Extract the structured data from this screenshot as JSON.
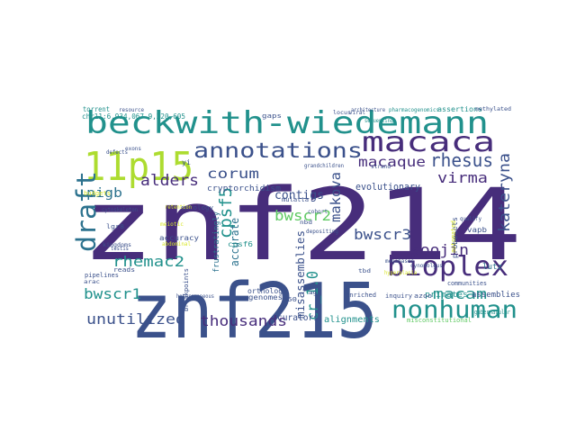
{
  "palette": {
    "purple": "#472d7b",
    "indigo": "#3b518b",
    "blue": "#2c728e",
    "teal": "#21918c",
    "green": "#28ae80",
    "lime": "#5ec962",
    "yellowgreen": "#addc30",
    "yellow": "#d9e72a",
    "dark": "#440154"
  },
  "words": [
    {
      "text": "znf214",
      "color": "purple"
    },
    {
      "text": "znf215",
      "color": "indigo"
    },
    {
      "text": "beckwith-wiedemann",
      "color": "teal"
    },
    {
      "text": "11p15",
      "color": "yellowgreen"
    },
    {
      "text": "macaca",
      "color": "purple"
    },
    {
      "text": "annotations",
      "color": "indigo"
    },
    {
      "text": "bioplex",
      "color": "purple"
    },
    {
      "text": "nonhuman",
      "color": "teal"
    },
    {
      "text": "draft",
      "color": "blue"
    },
    {
      "text": "kateryna",
      "color": "indigo"
    },
    {
      "text": "macaque",
      "color": "purple"
    },
    {
      "text": "rhesus",
      "color": "indigo"
    },
    {
      "text": "alders",
      "color": "purple"
    },
    {
      "text": "corum",
      "color": "indigo"
    },
    {
      "text": "pigb",
      "color": "blue"
    },
    {
      "text": "virma",
      "color": "purple"
    },
    {
      "text": "cpsf5",
      "color": "teal"
    },
    {
      "text": "rhemac2",
      "color": "teal"
    },
    {
      "text": "bwscr2",
      "color": "lime"
    },
    {
      "text": "bwscr3",
      "color": "indigo"
    },
    {
      "text": "bwscr1",
      "color": "teal"
    },
    {
      "text": "makova",
      "color": "indigo"
    },
    {
      "text": "soojin",
      "color": "purple"
    },
    {
      "text": "macam",
      "color": "teal"
    },
    {
      "text": "unutilized",
      "color": "indigo"
    },
    {
      "text": "thousands",
      "color": "purple"
    },
    {
      "text": "cr_1.0",
      "color": "teal"
    },
    {
      "text": "contigs",
      "color": "indigo"
    },
    {
      "text": "accurate",
      "color": "blue"
    },
    {
      "text": "misassemblies",
      "color": "indigo"
    },
    {
      "text": "evolutionary",
      "color": "indigo"
    },
    {
      "text": "cryptorchidism",
      "color": "indigo"
    },
    {
      "text": "assemblies",
      "color": "indigo"
    },
    {
      "text": "primates",
      "color": "teal"
    },
    {
      "text": "alignments",
      "color": "teal"
    },
    {
      "text": "curators",
      "color": "indigo"
    },
    {
      "text": "communities",
      "color": "indigo"
    },
    {
      "text": "enriched",
      "color": "indigo"
    },
    {
      "text": "inquiry",
      "color": "indigo"
    },
    {
      "text": "azoo",
      "color": "indigo"
    },
    {
      "text": "lutz",
      "color": "blue"
    },
    {
      "text": "vapb",
      "color": "indigo"
    },
    {
      "text": "probesets",
      "color": "indigo"
    },
    {
      "text": "frustratingly",
      "color": "blue"
    },
    {
      "text": "genomes",
      "color": "indigo"
    },
    {
      "text": "orthologs",
      "color": "indigo"
    },
    {
      "text": "cpsf6",
      "color": "teal"
    },
    {
      "text": "lgr8",
      "color": "indigo"
    },
    {
      "text": "accuracy",
      "color": "indigo"
    },
    {
      "text": "pipelines",
      "color": "indigo"
    },
    {
      "text": "reads",
      "color": "indigo"
    },
    {
      "text": "chr11:6,934,067-9,220,605",
      "color": "teal"
    },
    {
      "text": "assertions",
      "color": "teal"
    },
    {
      "text": "gaps",
      "color": "indigo"
    },
    {
      "text": "mulatta",
      "color": "indigo"
    },
    {
      "text": "ontology",
      "color": "indigo"
    },
    {
      "text": "breakpoints",
      "color": "indigo"
    },
    {
      "text": "automated",
      "color": "yellow"
    },
    {
      "text": "gubernacular",
      "color": "teal"
    },
    {
      "text": "misconstitutional",
      "color": "lime"
    },
    {
      "text": "budgets",
      "color": "yellow"
    },
    {
      "text": "pharmacogenomics",
      "color": "teal"
    },
    {
      "text": "arac",
      "color": "indigo"
    },
    {
      "text": "yi",
      "color": "indigo"
    },
    {
      "text": "n50",
      "color": "indigo"
    },
    {
      "text": "kingdoms",
      "color": "indigo"
    },
    {
      "text": "methylated",
      "color": "indigo"
    },
    {
      "text": "torrent",
      "color": "teal"
    },
    {
      "text": "resource",
      "color": "indigo"
    },
    {
      "text": "cytoskeleton",
      "color": "indigo"
    },
    {
      "text": "depositing",
      "color": "indigo"
    },
    {
      "text": "strand",
      "color": "indigo"
    },
    {
      "text": "megabases",
      "color": "indigo"
    },
    {
      "text": "grandchildren",
      "color": "indigo"
    },
    {
      "text": "cynomolgus",
      "color": "indigo"
    },
    {
      "text": "retention",
      "color": "yellow"
    },
    {
      "text": "meiotic",
      "color": "yellow"
    },
    {
      "text": "locus",
      "color": "indigo"
    },
    {
      "text": "viral",
      "color": "indigo"
    },
    {
      "text": "qualify",
      "color": "indigo"
    },
    {
      "text": "nbd",
      "color": "indigo"
    },
    {
      "text": "tbd",
      "color": "indigo"
    },
    {
      "text": "ago",
      "color": "indigo"
    },
    {
      "text": "architecture",
      "color": "indigo"
    },
    {
      "text": "abdominal",
      "color": "yellow"
    },
    {
      "text": "testis",
      "color": "indigo"
    },
    {
      "text": "defects",
      "color": "indigo"
    },
    {
      "text": "exons",
      "color": "indigo"
    },
    {
      "text": "hyperplasia",
      "color": "yellow"
    },
    {
      "text": "cohort",
      "color": "indigo"
    },
    {
      "text": "sequencing",
      "color": "teal"
    },
    {
      "text": "heterogeneous",
      "color": "indigo"
    }
  ]
}
